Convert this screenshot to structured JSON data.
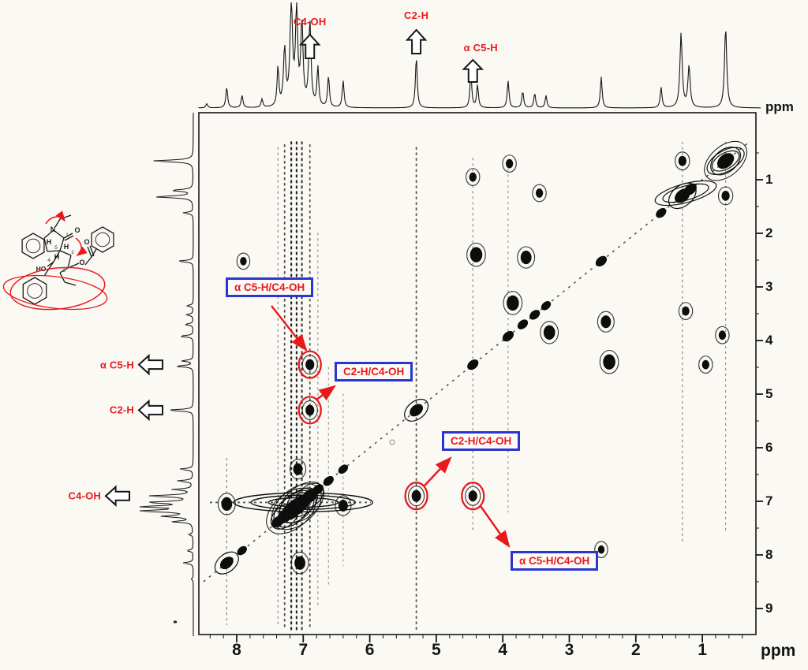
{
  "figure": {
    "unit_top": "ppm",
    "unit_bottom": "ppm",
    "red": "#e8191d",
    "blue": "#2b35cf",
    "ink": "#161616",
    "paper": "#fbf9f4"
  },
  "chart_data": {
    "type": "heatmap",
    "subtype": "2D NOESY 1H-1H NMR correlation map with 1D proton projections on top and left axes",
    "xlabel": "ppm",
    "ylabel": "ppm",
    "x_range": [
      8.57,
      0.2
    ],
    "y_range": [
      -0.25,
      9.49
    ],
    "x_axis_reversed": true,
    "x_ticks": [
      8,
      7,
      6,
      5,
      4,
      3,
      2,
      1
    ],
    "y_ticks": [
      1,
      2,
      3,
      4,
      5,
      6,
      7,
      8,
      9
    ],
    "proton_peaks": [
      {
        "ppm": 8.45,
        "h": 0.04
      },
      {
        "ppm": 8.15,
        "h": 0.2
      },
      {
        "ppm": 7.92,
        "h": 0.12
      },
      {
        "ppm": 7.62,
        "h": 0.08
      },
      {
        "ppm": 7.38,
        "h": 0.38
      },
      {
        "ppm": 7.28,
        "h": 0.55,
        "w": 0.02
      },
      {
        "ppm": 7.18,
        "h": 1.0,
        "w": 0.022
      },
      {
        "ppm": 7.1,
        "h": 0.92,
        "w": 0.02
      },
      {
        "ppm": 7.02,
        "h": 0.8,
        "w": 0.02
      },
      {
        "ppm": 6.9,
        "h": 0.82,
        "w": 0.02
      },
      {
        "ppm": 6.78,
        "h": 0.38
      },
      {
        "ppm": 6.62,
        "h": 0.3
      },
      {
        "ppm": 6.4,
        "h": 0.26
      },
      {
        "ppm": 5.3,
        "h": 0.5
      },
      {
        "ppm": 4.48,
        "h": 0.34
      },
      {
        "ppm": 4.38,
        "h": 0.22
      },
      {
        "ppm": 3.92,
        "h": 0.26
      },
      {
        "ppm": 3.7,
        "h": 0.16
      },
      {
        "ppm": 3.52,
        "h": 0.14
      },
      {
        "ppm": 3.35,
        "h": 0.12
      },
      {
        "ppm": 2.52,
        "h": 0.3
      },
      {
        "ppm": 1.62,
        "h": 0.2
      },
      {
        "ppm": 1.32,
        "h": 0.72,
        "w": 0.02
      },
      {
        "ppm": 1.2,
        "h": 0.4,
        "w": 0.02
      },
      {
        "ppm": 0.65,
        "h": 0.78,
        "w": 0.02
      }
    ],
    "diagonal_peaks": [
      {
        "ppm": 8.15,
        "s": 1.3
      },
      {
        "ppm": 7.92,
        "s": 0.8
      },
      {
        "ppm": 7.38,
        "s": 1.2
      },
      {
        "ppm": 7.28,
        "s": 1.6
      },
      {
        "ppm": 7.18,
        "s": 2.2
      },
      {
        "ppm": 7.1,
        "s": 2.2
      },
      {
        "ppm": 7.02,
        "s": 1.9
      },
      {
        "ppm": 6.9,
        "s": 1.6
      },
      {
        "ppm": 6.78,
        "s": 1.0
      },
      {
        "ppm": 6.62,
        "s": 0.9
      },
      {
        "ppm": 6.4,
        "s": 0.8
      },
      {
        "ppm": 5.3,
        "s": 1.3
      },
      {
        "ppm": 4.45,
        "s": 1.0
      },
      {
        "ppm": 3.92,
        "s": 1.0
      },
      {
        "ppm": 3.7,
        "s": 0.9
      },
      {
        "ppm": 3.52,
        "s": 0.9
      },
      {
        "ppm": 3.35,
        "s": 0.8
      },
      {
        "ppm": 2.52,
        "s": 1.0
      },
      {
        "ppm": 1.62,
        "s": 0.9
      },
      {
        "ppm": 1.3,
        "s": 1.6
      },
      {
        "ppm": 1.18,
        "s": 1.2
      },
      {
        "ppm": 0.65,
        "s": 1.8
      }
    ],
    "cross_peaks": [
      {
        "f2": 6.9,
        "f1": 4.45,
        "s": 0.9,
        "circled": true,
        "assignment": "α C5-H/C4-OH"
      },
      {
        "f2": 6.9,
        "f1": 5.3,
        "s": 0.9,
        "circled": true,
        "assignment": "C2-H/C4-OH"
      },
      {
        "f2": 5.3,
        "f1": 6.9,
        "s": 1.0,
        "circled": true,
        "assignment": "C2-H/C4-OH"
      },
      {
        "f2": 4.45,
        "f1": 6.9,
        "s": 0.9,
        "circled": true,
        "assignment": "α C5-H/C4-OH"
      },
      {
        "f2": 4.4,
        "f1": 2.4,
        "s": 1.4
      },
      {
        "f2": 2.4,
        "f1": 4.4,
        "s": 1.4
      },
      {
        "f2": 3.65,
        "f1": 2.45,
        "s": 1.2
      },
      {
        "f2": 2.45,
        "f1": 3.65,
        "s": 1.1
      },
      {
        "f2": 3.85,
        "f1": 3.3,
        "s": 1.4
      },
      {
        "f2": 3.3,
        "f1": 3.85,
        "s": 1.3
      },
      {
        "f2": 8.15,
        "f1": 7.05,
        "s": 1.2
      },
      {
        "f2": 7.05,
        "f1": 8.15,
        "s": 1.2
      },
      {
        "f2": 6.4,
        "f1": 7.08,
        "s": 1.0
      },
      {
        "f2": 7.08,
        "f1": 6.4,
        "s": 1.0
      },
      {
        "f2": 4.45,
        "f1": 0.95,
        "s": 0.7
      },
      {
        "f2": 0.95,
        "f1": 4.45,
        "s": 0.7
      },
      {
        "f2": 3.9,
        "f1": 0.7,
        "s": 0.7
      },
      {
        "f2": 0.7,
        "f1": 3.9,
        "s": 0.7
      },
      {
        "f2": 3.45,
        "f1": 1.25,
        "s": 0.7
      },
      {
        "f2": 1.25,
        "f1": 3.45,
        "s": 0.7
      },
      {
        "f2": 1.3,
        "f1": 0.65,
        "s": 0.8
      },
      {
        "f2": 0.65,
        "f1": 1.3,
        "s": 0.8
      },
      {
        "f2": 7.9,
        "f1": 2.52,
        "s": 0.6
      },
      {
        "f2": 2.52,
        "f1": 7.9,
        "s": 0.6
      }
    ],
    "noise_columns": [
      {
        "ppm": 8.15,
        "y1": 6.2,
        "y2": 9.3,
        "o": 0.55
      },
      {
        "ppm": 7.38,
        "y1": 0.4,
        "y2": 9.3,
        "o": 0.5
      },
      {
        "ppm": 7.28,
        "y1": 0.35,
        "y2": 9.4,
        "o": 0.75
      },
      {
        "ppm": 7.18,
        "y1": 0.3,
        "y2": 9.4,
        "o": 0.9
      },
      {
        "ppm": 7.1,
        "y1": 0.3,
        "y2": 9.4,
        "o": 0.9
      },
      {
        "ppm": 7.02,
        "y1": 0.3,
        "y2": 9.4,
        "o": 0.8
      },
      {
        "ppm": 6.9,
        "y1": 0.35,
        "y2": 9.4,
        "o": 0.7
      },
      {
        "ppm": 6.78,
        "y1": 2.0,
        "y2": 9.0,
        "o": 0.45
      },
      {
        "ppm": 6.62,
        "y1": 4.5,
        "y2": 8.6,
        "o": 0.4
      },
      {
        "ppm": 6.4,
        "y1": 5.0,
        "y2": 8.2,
        "o": 0.4
      },
      {
        "ppm": 5.3,
        "y1": 0.4,
        "y2": 9.4,
        "o": 0.7
      },
      {
        "ppm": 4.45,
        "y1": 0.6,
        "y2": 7.6,
        "o": 0.5
      },
      {
        "ppm": 3.92,
        "y1": 0.7,
        "y2": 7.2,
        "o": 0.4
      },
      {
        "ppm": 1.3,
        "y1": 0.3,
        "y2": 7.8,
        "o": 0.5
      },
      {
        "ppm": 0.65,
        "y1": 0.3,
        "y2": 7.6,
        "o": 0.45
      }
    ],
    "aromatic_row_streak_ppm": 7.02
  },
  "annotations": {
    "top_labels": [
      {
        "text": "C4-OH",
        "ppm": 6.9
      },
      {
        "text": "C2-H",
        "ppm": 5.3
      },
      {
        "text": "α C5-H",
        "ppm": 4.45
      }
    ],
    "left_labels": [
      {
        "text": "α C5-H",
        "ppm": 4.45
      },
      {
        "text": "C2-H",
        "ppm": 5.3
      },
      {
        "text": "C4-OH",
        "ppm": 6.9
      }
    ],
    "callouts": [
      {
        "text": "α C5-H/C4-OH",
        "f2": 6.9,
        "f1": 4.45
      },
      {
        "text": "C2-H/C4-OH",
        "f2": 6.9,
        "f1": 5.3
      },
      {
        "text": "C2-H/C4-OH",
        "f2": 5.3,
        "f1": 6.9
      },
      {
        "text": "α C5-H/C4-OH",
        "f2": 4.45,
        "f1": 6.9
      }
    ]
  },
  "molecule": {
    "atom_labels": [
      "N",
      "O",
      "O",
      "O",
      "HO",
      "H",
      "H",
      "H"
    ],
    "ring_numbers": [
      "1",
      "2",
      "3",
      "4",
      "5"
    ]
  }
}
